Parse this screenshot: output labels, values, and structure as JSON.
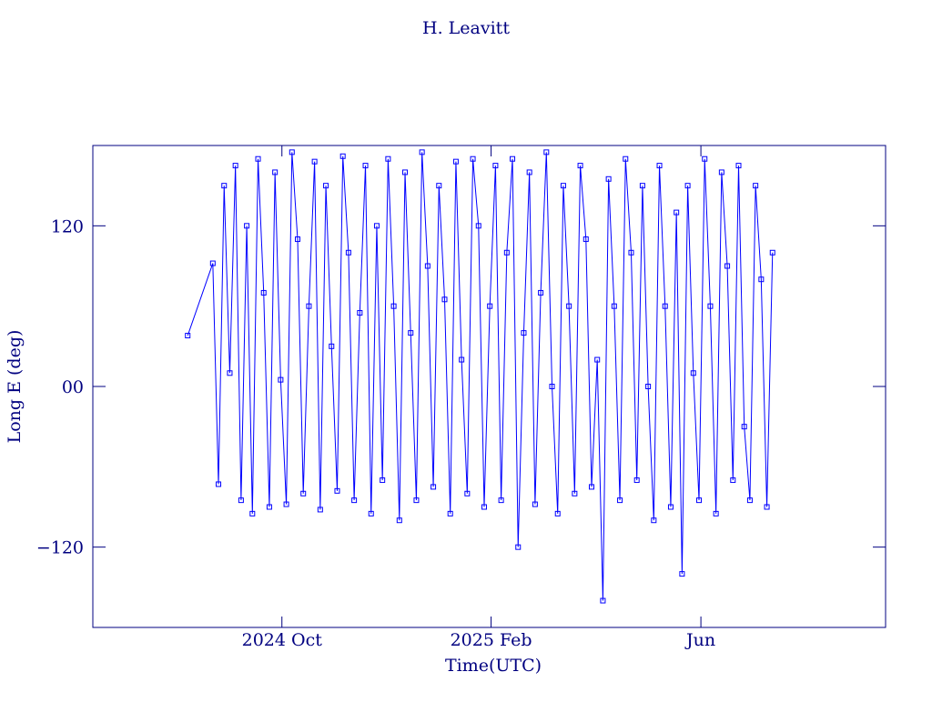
{
  "chart_data": {
    "type": "line",
    "title": "H. Leavitt",
    "xlabel": "Time(UTC)",
    "ylabel": "Long E (deg)",
    "xlim": [
      2024.449,
      2025.711
    ],
    "xticks": [
      {
        "value": 2024.75,
        "label": "2024 Oct"
      },
      {
        "value": 2025.083,
        "label": "2025 Feb"
      },
      {
        "value": 2025.417,
        "label": "Jun"
      }
    ],
    "ylim": [
      -180,
      180
    ],
    "yticks": [
      {
        "value": -120,
        "label": "−120"
      },
      {
        "value": 0,
        "label": "00"
      },
      120
    ],
    "series": [
      {
        "name": "H. Leavitt",
        "color": "#0000ff",
        "x": [
          2024.6,
          2024.64,
          2024.649,
          2024.658,
          2024.667,
          2024.676,
          2024.685,
          2024.694,
          2024.703,
          2024.712,
          2024.721,
          2024.73,
          2024.739,
          2024.748,
          2024.757,
          2024.766,
          2024.775,
          2024.784,
          2024.793,
          2024.802,
          2024.811,
          2024.82,
          2024.829,
          2024.838,
          2024.847,
          2024.856,
          2024.865,
          2024.874,
          2024.883,
          2024.892,
          2024.901,
          2024.91,
          2024.919,
          2024.928,
          2024.937,
          2024.946,
          2024.955,
          2024.964,
          2024.973,
          2024.982,
          2024.991,
          2025.0,
          2025.009,
          2025.018,
          2025.027,
          2025.036,
          2025.045,
          2025.054,
          2025.063,
          2025.072,
          2025.081,
          2025.09,
          2025.099,
          2025.108,
          2025.117,
          2025.126,
          2025.135,
          2025.144,
          2025.153,
          2025.162,
          2025.171,
          2025.18,
          2025.189,
          2025.198,
          2025.207,
          2025.216,
          2025.225,
          2025.234,
          2025.243,
          2025.252,
          2025.261,
          2025.27,
          2025.279,
          2025.288,
          2025.297,
          2025.306,
          2025.315,
          2025.324,
          2025.333,
          2025.342,
          2025.351,
          2025.36,
          2025.369,
          2025.378,
          2025.387,
          2025.396,
          2025.405,
          2025.414,
          2025.423,
          2025.432,
          2025.441,
          2025.45,
          2025.459,
          2025.468,
          2025.477,
          2025.486,
          2025.495,
          2025.504,
          2025.513,
          2025.522,
          2025.531
        ],
        "values": [
          38,
          92,
          -73,
          150,
          10,
          165,
          -85,
          120,
          -95,
          170,
          70,
          -90,
          160,
          5,
          -88,
          175,
          110,
          -80,
          60,
          168,
          -92,
          150,
          30,
          -78,
          172,
          100,
          -85,
          55,
          165,
          -95,
          120,
          -70,
          170,
          60,
          -100,
          160,
          40,
          -85,
          175,
          90,
          -75,
          150,
          65,
          -95,
          168,
          20,
          -80,
          170,
          120,
          -90,
          60,
          165,
          -85,
          100,
          170,
          -120,
          40,
          160,
          -88,
          70,
          175,
          0,
          -95,
          150,
          60,
          -80,
          165,
          110,
          -75,
          20,
          -160,
          155,
          60,
          -85,
          170,
          100,
          -70,
          150,
          0,
          -100,
          165,
          60,
          -90,
          130,
          -140,
          150,
          10,
          -85,
          170,
          60,
          -95,
          160,
          90,
          -70,
          165,
          -30,
          -85,
          150,
          80,
          -90,
          100
        ]
      }
    ]
  }
}
